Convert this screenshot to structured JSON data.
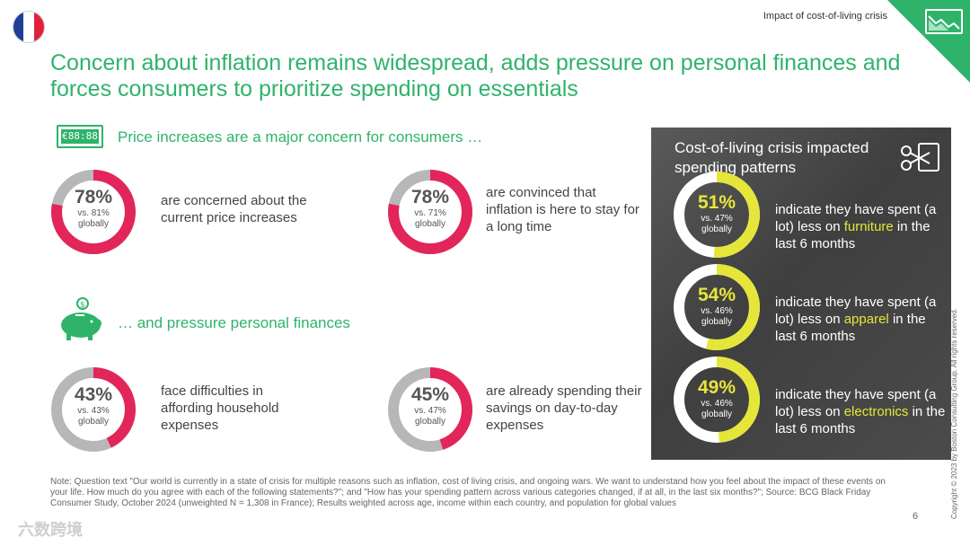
{
  "header": {
    "label": "Impact of cost-of-living crisis",
    "title": "Concern about inflation remains widespread, adds pressure on personal finances and forces consumers to prioritize spending on essentials",
    "flag_colors": [
      "#1f3f99",
      "#ffffff",
      "#e3203b"
    ],
    "accent_color": "#2fb36b"
  },
  "section1": {
    "icon_text": "€88:88",
    "heading": "Price increases are a major concern for consumers …"
  },
  "section2": {
    "heading": "… and pressure personal finances"
  },
  "colors": {
    "donut_fill": "#e2265a",
    "donut_track": "#b7b7b7",
    "panel_fill": "#e6e63a",
    "panel_track": "#ffffff"
  },
  "chart_data": [
    {
      "type": "pie",
      "title": "Price increases are a major concern for consumers …",
      "series": [
        {
          "name": "are concerned about the current price increases",
          "value": 78,
          "label": "78%",
          "comparison": "vs. 81%",
          "comparison_label": "globally",
          "text": "are concerned about the current price increases"
        },
        {
          "name": "are convinced that inflation is here to stay for a long time",
          "value": 78,
          "label": "78%",
          "comparison": "vs. 71%",
          "comparison_label": "globally",
          "text": "are convinced that inflation is here to stay for a long time"
        }
      ]
    },
    {
      "type": "pie",
      "title": "… and pressure personal finances",
      "series": [
        {
          "name": "face difficulties in affording household expenses",
          "value": 43,
          "label": "43%",
          "comparison": "vs. 43%",
          "comparison_label": "globally",
          "text": "face difficulties in affording household expenses"
        },
        {
          "name": "are already spending their savings on day-to-day expenses",
          "value": 45,
          "label": "45%",
          "comparison": "vs. 47%",
          "comparison_label": "globally",
          "text": "are already spending their savings on day-to-day expenses"
        }
      ]
    },
    {
      "type": "pie",
      "title": "Cost-of-living crisis impacted spending patterns",
      "series": [
        {
          "name": "furniture",
          "value": 51,
          "label": "51%",
          "comparison": "vs. 47%",
          "comparison_label": "globally",
          "text_before": "indicate they have spent (a lot) less on",
          "category": "furniture",
          "text_after": "in the last 6 months"
        },
        {
          "name": "apparel",
          "value": 54,
          "label": "54%",
          "comparison": "vs. 46%",
          "comparison_label": "globally",
          "text_before": "indicate they have spent (a lot) less on",
          "category": "apparel",
          "text_after": "in the last 6 months"
        },
        {
          "name": "electronics",
          "value": 49,
          "label": "49%",
          "comparison": "vs. 46%",
          "comparison_label": "globally",
          "text_before": "indicate they have spent (a lot) less on",
          "category": "electronics",
          "text_after": "in the last 6 months"
        }
      ]
    }
  ],
  "footer": {
    "note": "Note: Question text \"Our world is currently in a state of crisis for multiple reasons such as inflation, cost of living crisis, and ongoing wars. We want to understand how you feel about the impact of these events on your life. How much do you agree with each of the following statements?\"; and \"How has your spending pattern across various categories changed, if at all, in the last six months?\"; Source: BCG Black Friday Consumer Study, October 2024 (unweighted N = 1,308 in France); Results weighted across age, income within each country, and population for global values",
    "page_number": "6",
    "copyright": "Copyright © 2023 by Boston Consulting Group. All rights reserved.",
    "watermark": "六数跨境"
  }
}
